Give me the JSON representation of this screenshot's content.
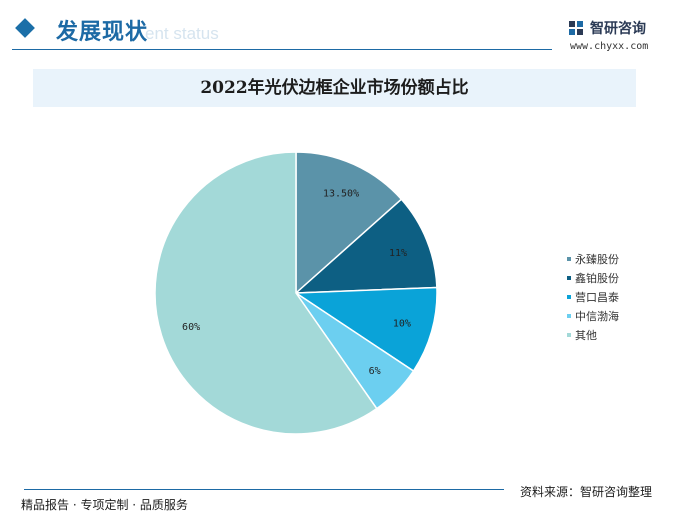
{
  "header": {
    "section_title": "发展现状",
    "section_subtitle": "ent status",
    "brand_name": "智研咨询",
    "brand_url": "www.chyxx.com",
    "accent_color": "#1d6aa5"
  },
  "chart_data": {
    "type": "pie",
    "title": "2022年光伏边框企业市场份额占比",
    "start_angle_deg": 0,
    "direction": "clockwise",
    "legend_position": "right",
    "slices": [
      {
        "name": "永臻股份",
        "value": 13.5,
        "label": "13.50%",
        "color": "#5b93a9"
      },
      {
        "name": "鑫铂股份",
        "value": 11,
        "label": "11%",
        "color": "#0d5f83"
      },
      {
        "name": "营口昌泰",
        "value": 10,
        "label": "10%",
        "color": "#0aa3d8"
      },
      {
        "name": "中信渤海",
        "value": 6,
        "label": "6%",
        "color": "#6ccff0"
      },
      {
        "name": "其他",
        "value": 60,
        "label": "60%",
        "color": "#a3d9d8"
      }
    ]
  },
  "footer": {
    "tagline": "精品报告 · 专项定制 · 品质服务",
    "source_label": "资料来源：",
    "source_value": "智研咨询整理"
  }
}
